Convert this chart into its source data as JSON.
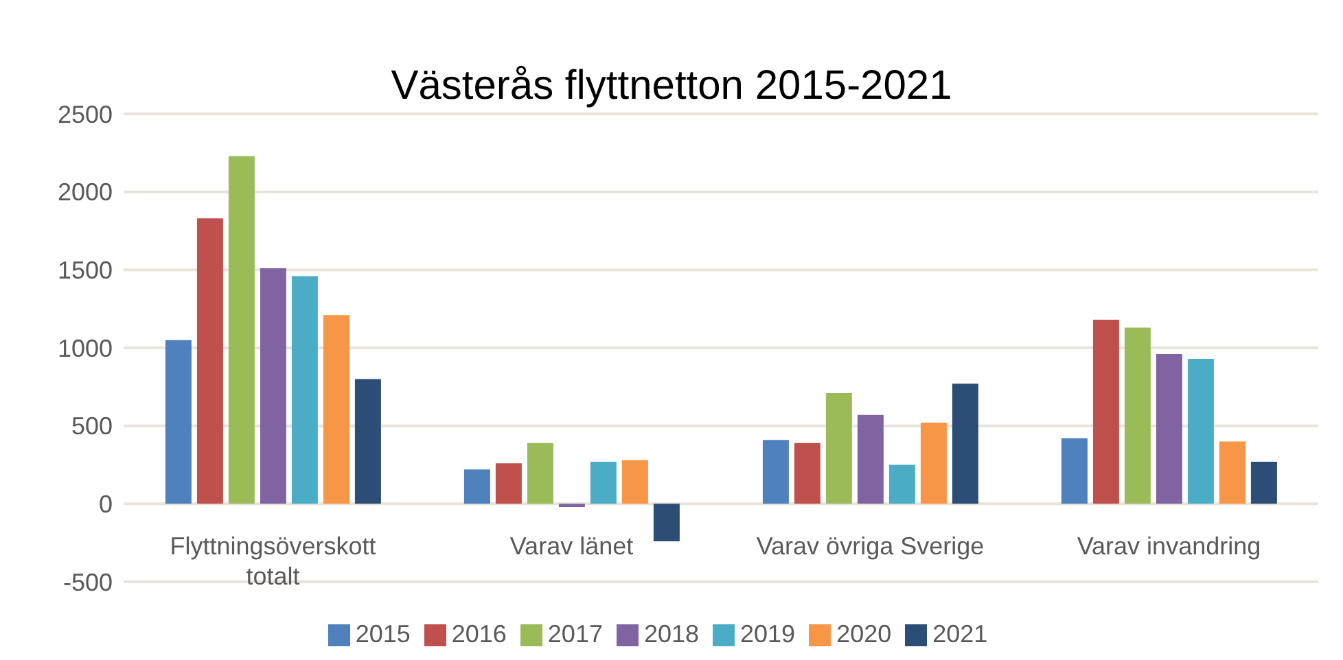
{
  "chart_data": {
    "type": "bar",
    "title": "Västerås flyttnetton 2015-2021",
    "categories": [
      "Flyttningsöverskott totalt",
      "Varav  länet",
      "Varav  övriga Sverige",
      "Varav invandring"
    ],
    "series": [
      {
        "name": "2015",
        "color": "#4f81bd",
        "values": [
          1050,
          220,
          410,
          420
        ]
      },
      {
        "name": "2016",
        "color": "#c0504d",
        "values": [
          1830,
          260,
          390,
          1180
        ]
      },
      {
        "name": "2017",
        "color": "#9bbb59",
        "values": [
          2230,
          390,
          710,
          1130
        ]
      },
      {
        "name": "2018",
        "color": "#8064a2",
        "values": [
          1510,
          -20,
          570,
          960
        ]
      },
      {
        "name": "2019",
        "color": "#4bacc6",
        "values": [
          1460,
          270,
          250,
          930
        ]
      },
      {
        "name": "2020",
        "color": "#f79646",
        "values": [
          1210,
          280,
          520,
          400
        ]
      },
      {
        "name": "2021",
        "color": "#2c4d75",
        "values": [
          800,
          -240,
          770,
          270
        ]
      }
    ],
    "ylim": [
      -500,
      2500
    ],
    "yticks": [
      -500,
      0,
      500,
      1000,
      1500,
      2000,
      2500
    ],
    "grid": "y",
    "legend": "bottom"
  }
}
